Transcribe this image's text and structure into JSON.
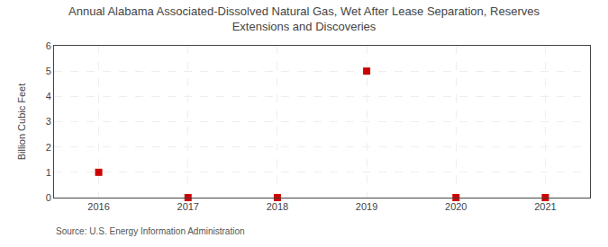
{
  "chart_data": {
    "type": "scatter",
    "title": "Annual Alabama Associated-Dissolved Natural Gas, Wet After Lease Separation, Reserves",
    "subtitle": "Extensions and Discoveries",
    "ylabel": "Billion Cubic Feet",
    "annotations": [
      "Source: U.S. Energy Information Administration"
    ],
    "x": [
      2016,
      2017,
      2018,
      2019,
      2020,
      2021
    ],
    "values": [
      1,
      0,
      0,
      5,
      0,
      0
    ],
    "color": "#cc0000",
    "marker": "square",
    "xlim": [
      2015.5,
      2021.5
    ],
    "xticks": [
      2016,
      2017,
      2018,
      2019,
      2020,
      2021
    ],
    "ylim": [
      0,
      6
    ],
    "yticks": [
      0,
      1,
      2,
      3,
      4,
      5,
      6
    ],
    "grid": true
  }
}
